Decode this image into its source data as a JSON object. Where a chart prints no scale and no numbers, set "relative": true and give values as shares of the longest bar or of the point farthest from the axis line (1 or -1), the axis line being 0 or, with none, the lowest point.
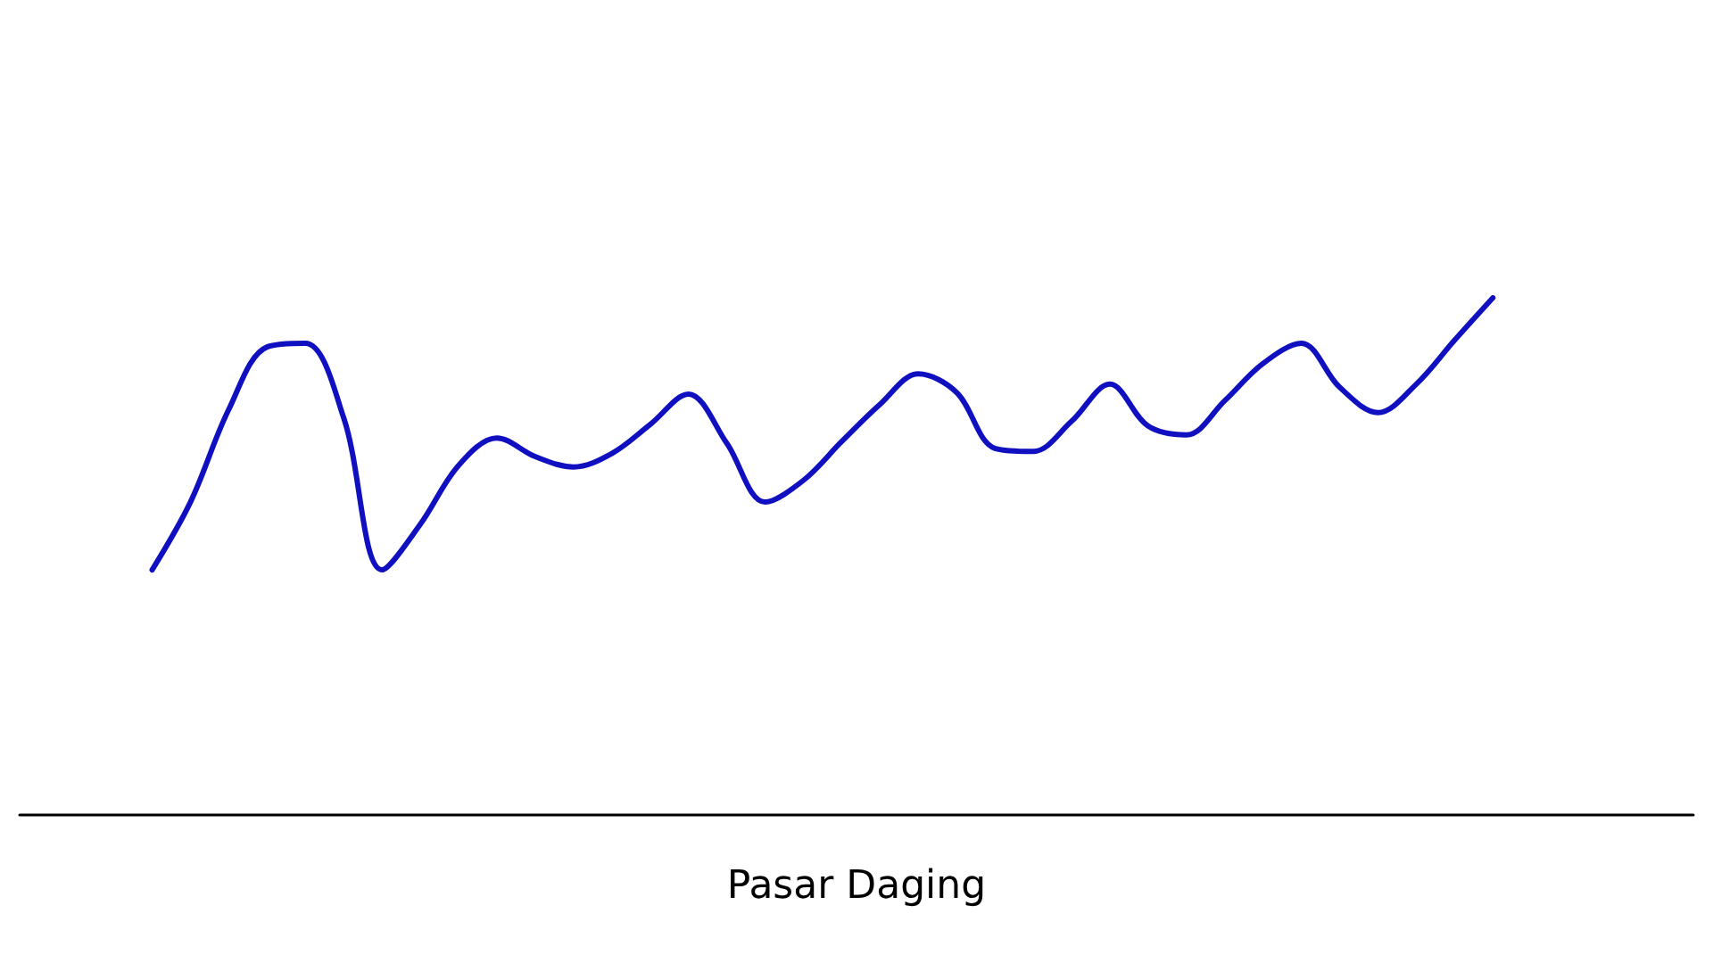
{
  "chart_data": {
    "type": "line",
    "relative": true,
    "xlabel": "Pasar Daging",
    "marker": "none",
    "grid": false,
    "categories": [
      null,
      null,
      null,
      null,
      null,
      null,
      null,
      null,
      null,
      null,
      null,
      null,
      null,
      null,
      null,
      null,
      null,
      null,
      null,
      null,
      null,
      null,
      null,
      null,
      null,
      null,
      null,
      null,
      null,
      null,
      null,
      null,
      null,
      null,
      null,
      null
    ],
    "series": [
      {
        "color": "#1010c0",
        "values": [
          0.474,
          0.605,
          0.784,
          0.905,
          0.912,
          0.768,
          0.474,
          0.562,
          0.676,
          0.729,
          0.693,
          0.673,
          0.699,
          0.755,
          0.814,
          0.719,
          0.605,
          0.647,
          0.722,
          0.794,
          0.853,
          0.817,
          0.709,
          0.703,
          0.761,
          0.833,
          0.752,
          0.735,
          0.801,
          0.873,
          0.912,
          0.827,
          0.778,
          0.833,
          0.918,
          1
        ]
      }
    ]
  }
}
